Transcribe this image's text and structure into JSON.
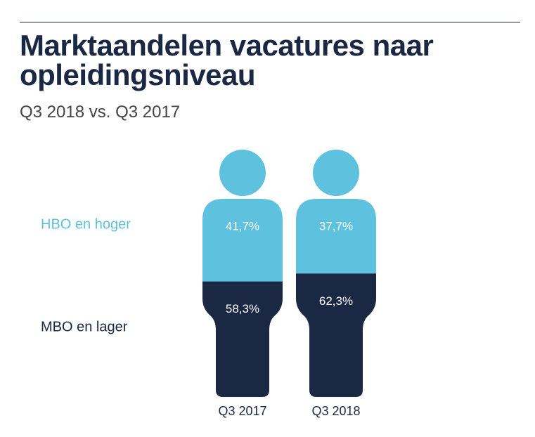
{
  "chart_data": {
    "type": "pictogram-stacked",
    "title": "Marktaandelen vacatures naar opleidingsniveau",
    "subtitle": "Q3 2018 vs. Q3 2017",
    "categories": [
      "Q3 2017",
      "Q3 2018"
    ],
    "series": [
      {
        "name": "HBO en hoger",
        "color": "#5ec1de",
        "values": [
          41.7,
          37.7
        ],
        "value_labels": [
          "41,7%",
          "37,7%"
        ]
      },
      {
        "name": "MBO en lager",
        "color": "#1b2844",
        "values": [
          58.3,
          62.3
        ],
        "value_labels": [
          "58,3%",
          "62,3%"
        ]
      }
    ]
  }
}
